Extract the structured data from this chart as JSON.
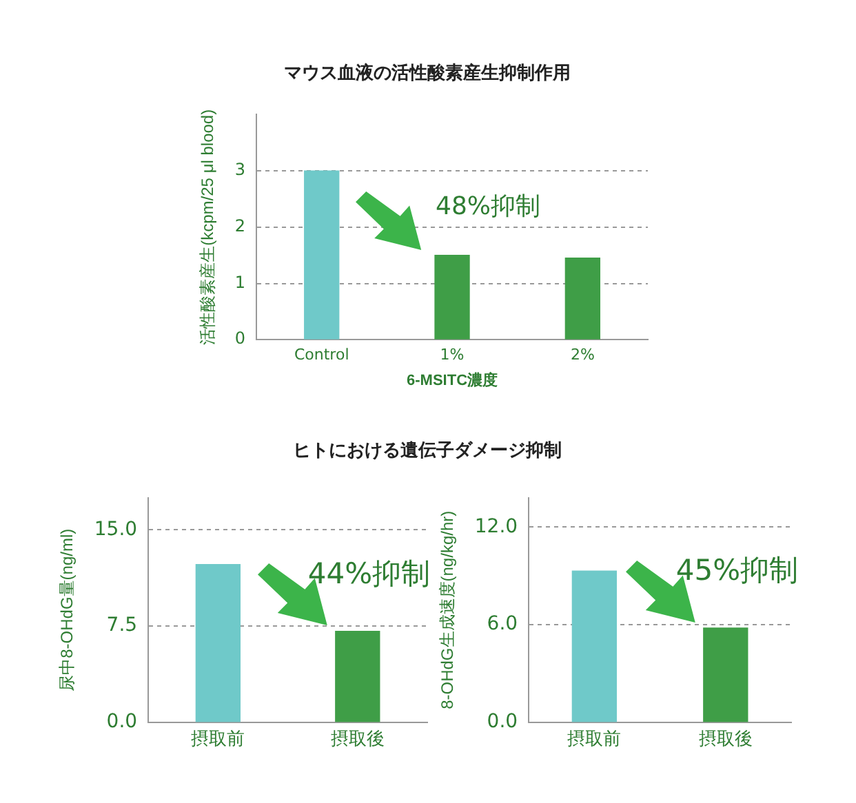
{
  "chart_data": [
    {
      "type": "bar",
      "title": "マウス血液の活性酸素産生抑制作用",
      "xlabel": "6-MSITC濃度",
      "ylabel": "活性酸素産生(kcpm/25 μl blood)",
      "categories": [
        "Control",
        "1%",
        "2%"
      ],
      "values": [
        3.0,
        1.5,
        1.45
      ],
      "colors": [
        "#6fc9c9",
        "#3f9e47",
        "#3f9e47"
      ],
      "ylim": [
        0,
        4
      ],
      "yticks": [
        0,
        1,
        2,
        3
      ],
      "grid": "y",
      "legend": false,
      "annotations": [
        {
          "text": "48%抑制",
          "x": "1%",
          "y": 1.5
        }
      ]
    },
    {
      "type": "bar",
      "title": "ヒトにおける遺伝子ダメージ抑制",
      "ylabel": "尿中8-OHdG量(ng/ml)",
      "categories": [
        "摂取前",
        "摂取後"
      ],
      "values": [
        12.3,
        7.1
      ],
      "colors": [
        "#6fc9c9",
        "#3f9e47"
      ],
      "ylim": [
        0,
        17.5
      ],
      "yticks": [
        {
          "value": 0,
          "label": "0.0"
        },
        7.5,
        {
          "value": 15,
          "label": "15.0"
        }
      ],
      "grid": "y",
      "legend": false,
      "annotations": [
        {
          "text": "44%抑制",
          "x": "摂取後",
          "y": 7.1
        }
      ]
    },
    {
      "type": "bar",
      "ylabel": "8-OHdG生成速度(ng/kg/hr)",
      "categories": [
        "摂取前",
        "摂取後"
      ],
      "values": [
        9.3,
        5.8
      ],
      "colors": [
        "#6fc9c9",
        "#3f9e47"
      ],
      "ylim": [
        0,
        13.8
      ],
      "yticks": [
        {
          "value": 0,
          "label": "0.0"
        },
        {
          "value": 6,
          "label": "6.0"
        },
        {
          "value": 12,
          "label": "12.0"
        }
      ],
      "grid": "y",
      "legend": false,
      "annotations": [
        {
          "text": "45%抑制",
          "x": "摂取後",
          "y": 5.8
        }
      ]
    }
  ]
}
